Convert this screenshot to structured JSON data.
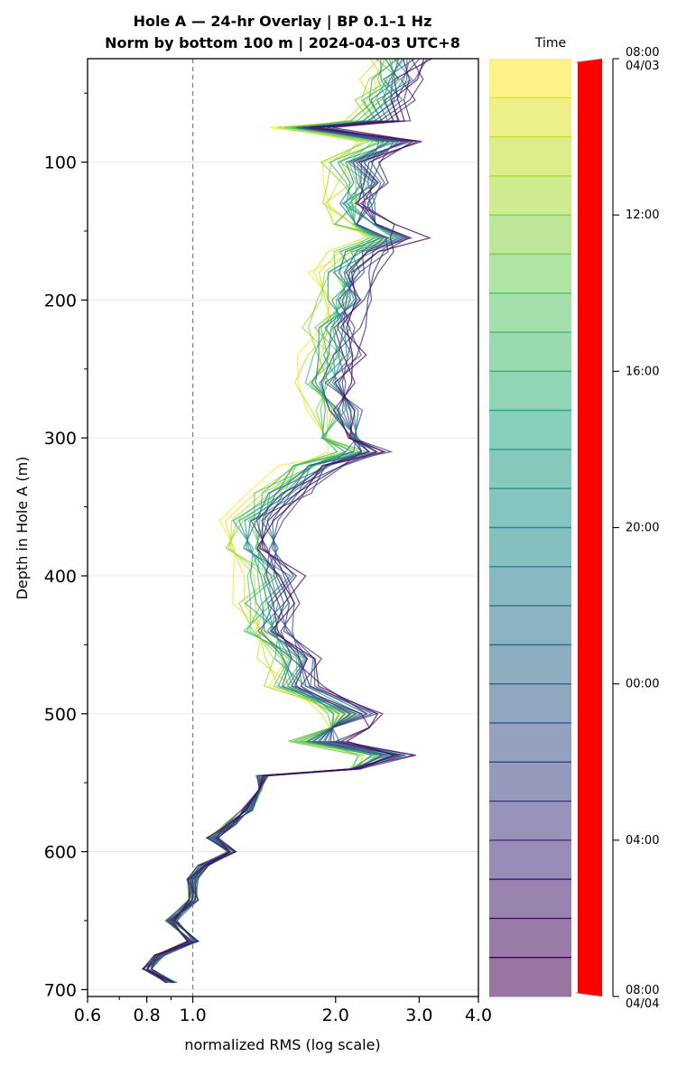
{
  "chart_data": {
    "type": "line",
    "title_line1": "Hole A — 24-hr Overlay  |  BP 0.1–1 Hz",
    "title_line2": "Norm by bottom 100 m  |  2024-04-03 UTC+8",
    "xlabel": "normalized RMS  (log scale)",
    "ylabel": "Depth in Hole A (m)",
    "x_scale": "log",
    "xlim": [
      0.6,
      4.0
    ],
    "ylim": [
      705,
      25
    ],
    "x_ticks": [
      0.6,
      0.8,
      1.0,
      2.0,
      3.0,
      4.0
    ],
    "x_tick_labels": [
      "0.6",
      "0.8",
      "1.0",
      "2.0",
      "3.0",
      "4.0"
    ],
    "y_ticks": [
      100,
      200,
      300,
      400,
      500,
      600,
      700
    ],
    "y_tick_labels": [
      "100",
      "200",
      "300",
      "400",
      "500",
      "600",
      "700"
    ],
    "grid": "horizontal",
    "reference_line_x": 1.0,
    "series_count": 24,
    "series_colormap": "viridis_r",
    "depth": [
      25,
      40,
      55,
      70,
      75,
      85,
      100,
      115,
      130,
      145,
      155,
      165,
      180,
      200,
      220,
      240,
      260,
      280,
      300,
      310,
      320,
      340,
      360,
      380,
      400,
      420,
      440,
      460,
      480,
      500,
      510,
      520,
      530,
      540,
      545,
      555,
      570,
      580,
      590,
      600,
      610,
      620,
      635,
      650,
      665,
      675,
      685,
      695
    ],
    "representative_profile": [
      3.0,
      2.9,
      2.8,
      2.7,
      1.9,
      2.9,
      2.4,
      2.5,
      2.4,
      2.5,
      2.9,
      2.5,
      2.3,
      2.3,
      2.2,
      2.2,
      2.1,
      2.2,
      2.3,
      2.5,
      2.0,
      1.7,
      1.5,
      1.5,
      1.6,
      1.6,
      1.6,
      1.8,
      1.8,
      2.4,
      2.2,
      2.0,
      2.8,
      2.2,
      1.4,
      1.4,
      1.3,
      1.2,
      1.1,
      1.2,
      1.05,
      1.0,
      1.0,
      0.9,
      1.0,
      0.85,
      0.8,
      0.9
    ],
    "colorbar": {
      "title": "Time",
      "tick_labels": [
        "08:00\n04/03",
        "12:00",
        "16:00",
        "20:00",
        "00:00",
        "04:00",
        "08:00\n04/04"
      ],
      "start_color": "#fde725",
      "end_color": "#440154",
      "arrow_color": "#ff0000"
    }
  }
}
